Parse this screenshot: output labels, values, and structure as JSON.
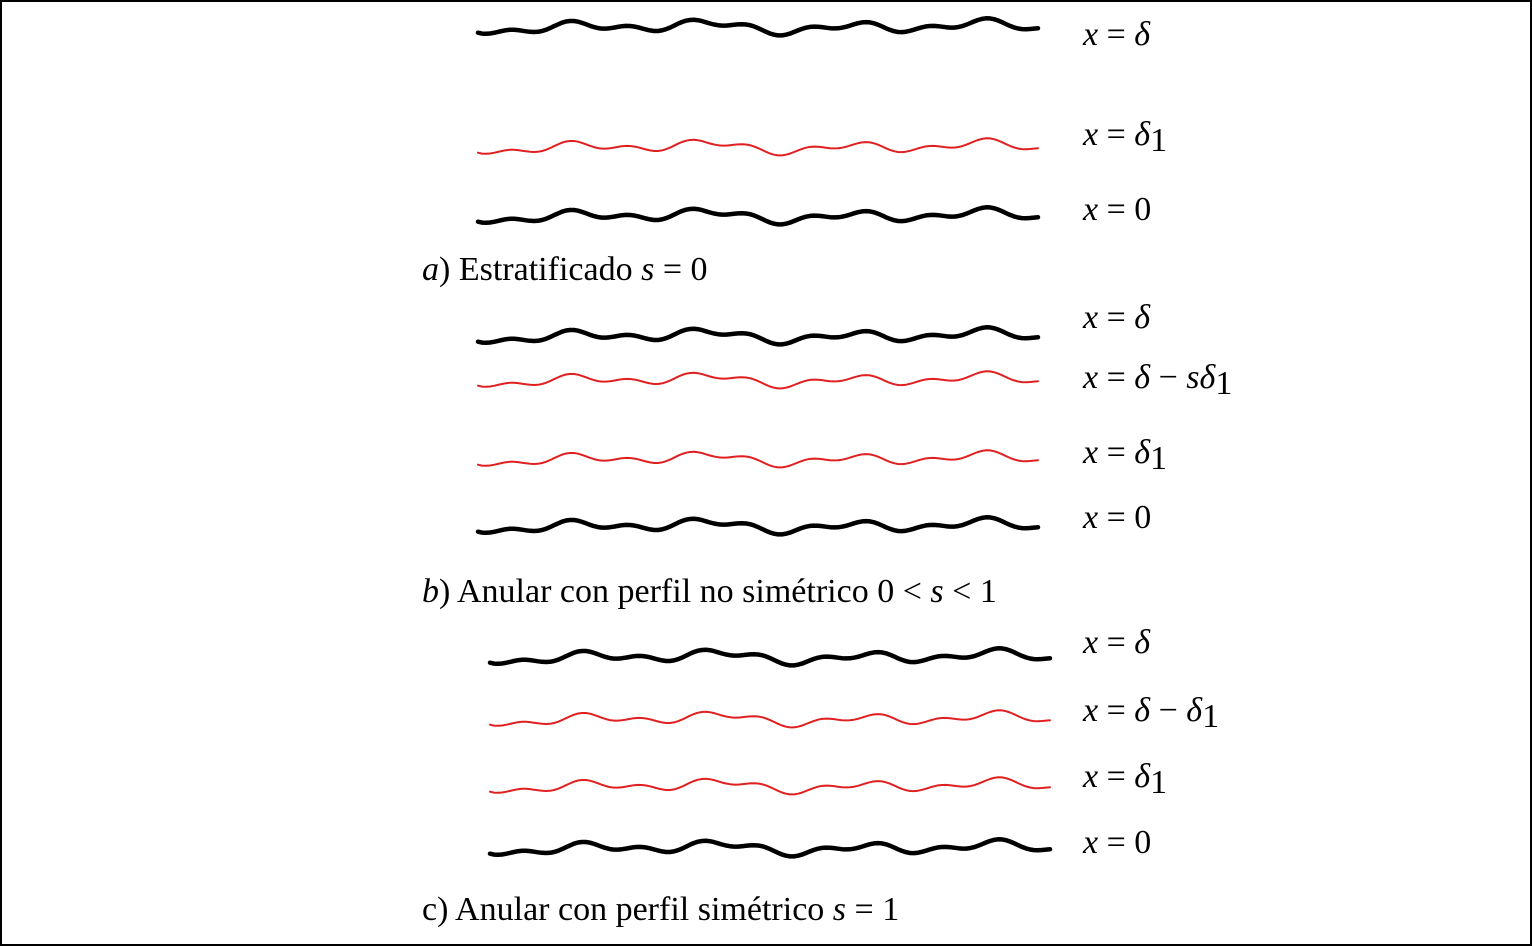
{
  "panels": [
    {
      "lines": [
        {
          "label": "x = δ",
          "color": "#000000"
        },
        {
          "label": "x = δ1",
          "color": "#e02020"
        },
        {
          "label": "x = 0",
          "color": "#000000"
        }
      ],
      "caption": "a) Estratificado s = 0"
    },
    {
      "lines": [
        {
          "label": "x = δ",
          "color": "#000000"
        },
        {
          "label": "x = δ − sδ1",
          "color": "#e02020"
        },
        {
          "label": "x = δ1",
          "color": "#e02020"
        },
        {
          "label": "x = 0",
          "color": "#000000"
        }
      ],
      "caption": "b) Anular con perfil no simétrico 0 < s < 1"
    },
    {
      "lines": [
        {
          "label": "x = δ",
          "color": "#000000"
        },
        {
          "label": "x = δ − δ1",
          "color": "#e02020"
        },
        {
          "label": "x = δ1",
          "color": "#e02020"
        },
        {
          "label": "x = 0",
          "color": "#000000"
        }
      ],
      "caption": "c) Anular con perfil simétrico s = 1"
    }
  ]
}
